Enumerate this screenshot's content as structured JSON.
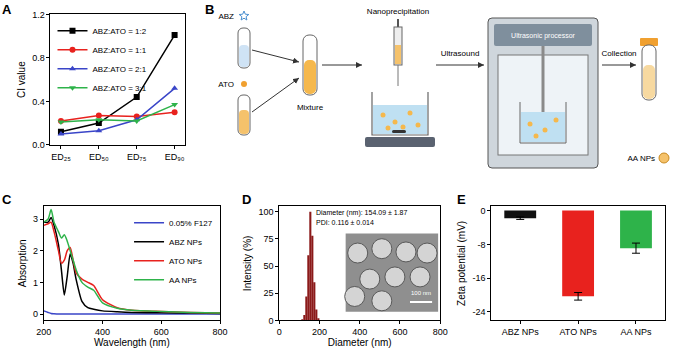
{
  "chart_data": [
    {
      "type": "line",
      "title": "A",
      "categories": [
        "ED₂₅",
        "ED₅₀",
        "ED₇₅",
        "ED₉₀"
      ],
      "y_label": "CI value",
      "ylim": [
        0,
        1.2
      ],
      "yticks": [
        {
          "value": 0,
          "label": "0.0"
        },
        {
          "value": 0.4,
          "label": "0.4"
        },
        {
          "value": 0.8,
          "label": "0.8"
        },
        {
          "value": 1.2,
          "label": "1.2"
        }
      ],
      "legend": "top left",
      "series": [
        {
          "name": "ABZ:ATO = 1:2",
          "color": "#000000",
          "marker": "square",
          "values": [
            0.12,
            0.2,
            0.44,
            1.01
          ]
        },
        {
          "name": "ABZ:ATO = 1:1",
          "color": "#e8221e",
          "marker": "circle",
          "values": [
            0.22,
            0.27,
            0.26,
            0.3
          ]
        },
        {
          "name": "ABZ:ATO = 2:1",
          "color": "#3a45c8",
          "marker": "triangle-up",
          "values": [
            0.1,
            0.13,
            0.23,
            0.52
          ]
        },
        {
          "name": "ABZ:ATO = 3:1",
          "color": "#2eb34a",
          "marker": "triangle-down",
          "values": [
            0.21,
            0.23,
            0.22,
            0.37
          ]
        }
      ]
    },
    {
      "type": "line",
      "title": "C",
      "x": [
        200,
        215,
        225,
        235,
        250,
        260,
        270,
        280,
        290,
        300,
        310,
        330,
        350,
        370,
        400,
        450,
        500,
        600,
        700,
        800
      ],
      "x_label": "Wavelength (nm)",
      "y_label": "Absorption",
      "xlim": [
        200,
        800
      ],
      "xticks": [
        200,
        400,
        600,
        800
      ],
      "ylim": [
        -0.2,
        3.4
      ],
      "yticks": [
        0,
        1,
        2,
        3
      ],
      "legend": "top right",
      "series": [
        {
          "name": "0.05% F127",
          "color": "#3a45c8",
          "values": [
            0.1,
            0.05,
            0.02,
            0.01,
            0,
            0,
            0,
            0,
            0,
            0,
            0,
            0,
            0,
            0,
            0,
            0,
            0,
            0,
            0,
            0
          ]
        },
        {
          "name": "ABZ NPs",
          "color": "#000000",
          "values": [
            2.9,
            2.9,
            3.05,
            2.8,
            2.2,
            1.4,
            0.6,
            1.2,
            1.9,
            1.6,
            1.1,
            0.4,
            0.2,
            0.15,
            0.1,
            0.07,
            0.05,
            0.04,
            0.03,
            0.02
          ]
        },
        {
          "name": "ATO NPs",
          "color": "#e8221e",
          "values": [
            2.8,
            2.85,
            2.9,
            2.6,
            2.0,
            1.6,
            1.7,
            2.0,
            2.1,
            1.7,
            1.3,
            1.1,
            1.0,
            0.9,
            0.45,
            0.2,
            0.12,
            0.08,
            0.05,
            0.03
          ]
        },
        {
          "name": "AA NPs",
          "color": "#2eb34a",
          "values": [
            2.9,
            3.0,
            3.3,
            2.9,
            2.6,
            2.4,
            2.5,
            2.3,
            2.0,
            1.7,
            1.4,
            1.0,
            0.85,
            0.75,
            0.35,
            0.18,
            0.12,
            0.08,
            0.05,
            0.03
          ]
        }
      ]
    },
    {
      "type": "bar",
      "title": "D",
      "x": [
        115,
        125,
        135,
        145,
        155,
        165,
        175,
        185,
        195
      ],
      "values": [
        1,
        5,
        22,
        60,
        100,
        78,
        35,
        10,
        2
      ],
      "color": "#8b1a1a",
      "x_label": "Diameter (nm)",
      "y_label": "Intensity (%)",
      "xlim": [
        0,
        800
      ],
      "xticks": [
        0,
        200,
        400,
        600,
        800
      ],
      "ylim": [
        0,
        105
      ],
      "yticks": [
        0,
        25,
        50,
        75,
        100
      ],
      "annotations": [
        "Diameter (nm): 154.09 ± 1.87",
        "PDI: 0.116 ± 0.014",
        "100 nm"
      ]
    },
    {
      "type": "bar",
      "title": "E",
      "categories": [
        "ABZ NPs",
        "ATO NPs",
        "AA NPs"
      ],
      "values": [
        -1.8,
        -20.3,
        -8.9
      ],
      "errors": [
        0.3,
        0.9,
        1.2
      ],
      "colors": [
        "#111111",
        "#e8221e",
        "#2eb34a"
      ],
      "y_label": "Zeta potential (mV)",
      "ylim": [
        -26,
        1
      ],
      "yticks": [
        -24,
        -16,
        -8,
        0
      ]
    }
  ],
  "diagram": {
    "title": "B",
    "labels": {
      "abz": "ABZ",
      "ato": "ATO",
      "mixture": "Mixture",
      "nanoprecipitation": "Nanoprecipitation",
      "ultrasound": "Ultrasound",
      "processor": "Ultrasonic processor",
      "collection": "Collection",
      "product": "AA NPs"
    }
  }
}
